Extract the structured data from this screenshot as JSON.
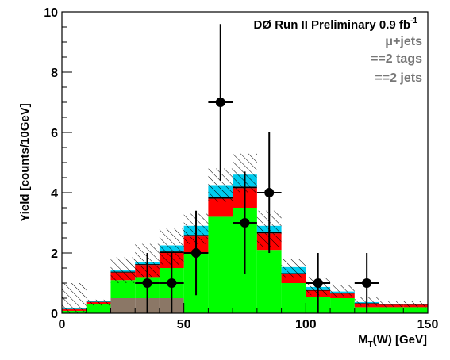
{
  "chart_data": {
    "type": "bar",
    "stacked": true,
    "experiment": "DØ Run II Preliminary 0.9 fb",
    "lumi_sup": "-1",
    "channel": "μ+jets",
    "tags": "==2 tags",
    "jets": "==2 jets",
    "ylabel": "Yield [counts/10GeV]",
    "xlabel_main": "M",
    "xlabel_sub": "T",
    "xlabel_rest": "(W) [GeV]",
    "xlim": [
      0,
      150
    ],
    "ylim": [
      0,
      10
    ],
    "x_ticks": [
      "0",
      "50",
      "100",
      "150"
    ],
    "y_ticks": [
      "0",
      "2",
      "4",
      "6",
      "8",
      "10"
    ],
    "bin_edges": [
      0,
      10,
      20,
      30,
      40,
      50,
      60,
      70,
      80,
      90,
      100,
      110,
      120,
      130,
      140,
      150
    ],
    "series": [
      {
        "color": "#8b7766",
        "values": [
          0,
          0,
          0.5,
          0.5,
          0.5,
          0,
          0,
          0,
          0,
          0,
          0,
          0,
          0,
          0,
          0
        ]
      },
      {
        "color": "#00ff00",
        "values": [
          0.08,
          0.3,
          0.6,
          0.7,
          1.0,
          2.0,
          3.2,
          3.5,
          2.1,
          1.0,
          0.55,
          0.5,
          0.2,
          0.2,
          0.2
        ]
      },
      {
        "color": "#ff0000",
        "values": [
          0.05,
          0.07,
          0.25,
          0.4,
          0.5,
          0.55,
          0.6,
          0.65,
          0.55,
          0.3,
          0.2,
          0.15,
          0.12,
          0.08,
          0.08
        ]
      },
      {
        "color": "#000000",
        "values": [
          0.01,
          0.01,
          0.03,
          0.03,
          0.05,
          0.05,
          0.05,
          0.05,
          0.05,
          0.03,
          0.02,
          0.02,
          0.02,
          0.01,
          0.01
        ]
      },
      {
        "color": "#00ccee",
        "values": [
          0.02,
          0.02,
          0.04,
          0.07,
          0.2,
          0.3,
          0.4,
          0.4,
          0.2,
          0.2,
          0.1,
          0.05,
          0.03,
          0.02,
          0.02
        ]
      }
    ],
    "uncertainty_band": {
      "upper": [
        1.0,
        0.45,
        1.85,
        2.3,
        2.8,
        3.3,
        4.8,
        5.3,
        3.4,
        1.8,
        1.2,
        0.95,
        0.55,
        0.4,
        0.4
      ],
      "lower": [
        0.0,
        0.25,
        1.0,
        1.2,
        1.6,
        2.3,
        3.7,
        4.0,
        2.2,
        1.2,
        0.6,
        0.55,
        0.25,
        0.2,
        0.2
      ]
    },
    "data_points": [
      {
        "x": 35,
        "y": 1,
        "err_up": 1.0,
        "err_down": 1.0
      },
      {
        "x": 45,
        "y": 1,
        "err_up": 1.0,
        "err_down": 1.0
      },
      {
        "x": 55,
        "y": 2,
        "err_up": 1.4,
        "err_down": 1.4
      },
      {
        "x": 65,
        "y": 7,
        "err_up": 2.6,
        "err_down": 2.6
      },
      {
        "x": 75,
        "y": 3,
        "err_up": 1.7,
        "err_down": 1.7
      },
      {
        "x": 85,
        "y": 4,
        "err_up": 2.0,
        "err_down": 2.0
      },
      {
        "x": 105,
        "y": 1,
        "err_up": 1.0,
        "err_down": 1.0
      },
      {
        "x": 125,
        "y": 1,
        "err_up": 1.0,
        "err_down": 1.0
      }
    ]
  }
}
